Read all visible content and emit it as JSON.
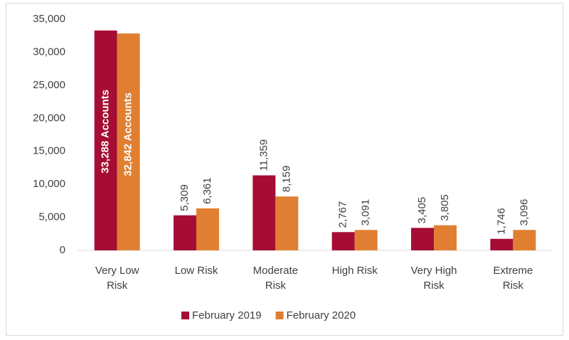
{
  "chart_data": {
    "type": "bar",
    "categories": [
      "Very Low Risk",
      "Low Risk",
      "Moderate Risk",
      "High Risk",
      "Very High Risk",
      "Extreme Risk"
    ],
    "series": [
      {
        "name": "February 2019",
        "color": "#a50d34",
        "values": [
          33288,
          5309,
          11359,
          2767,
          3405,
          1746
        ],
        "value_labels": [
          "33,288 Accounts",
          "5,309",
          "11,359",
          "2,767",
          "3,405",
          "1,746"
        ]
      },
      {
        "name": "February 2020",
        "color": "#e07f32",
        "values": [
          32842,
          6361,
          8159,
          3091,
          3805,
          3096
        ],
        "value_labels": [
          "32,842 Accounts",
          "6,361",
          "8,159",
          "3,091",
          "3,805",
          "3,096"
        ]
      }
    ],
    "ylim": [
      0,
      35000
    ],
    "yticks": [
      {
        "value": 0,
        "label": "0"
      },
      {
        "value": 5000,
        "label": "5,000"
      },
      {
        "value": 10000,
        "label": "10,000"
      },
      {
        "value": 15000,
        "label": "15,000"
      },
      {
        "value": 20000,
        "label": "20,000"
      },
      {
        "value": 25000,
        "label": "25,000"
      },
      {
        "value": 30000,
        "label": "30,000"
      },
      {
        "value": 35000,
        "label": "35,000"
      }
    ],
    "grid": false,
    "legend": "bottom"
  }
}
